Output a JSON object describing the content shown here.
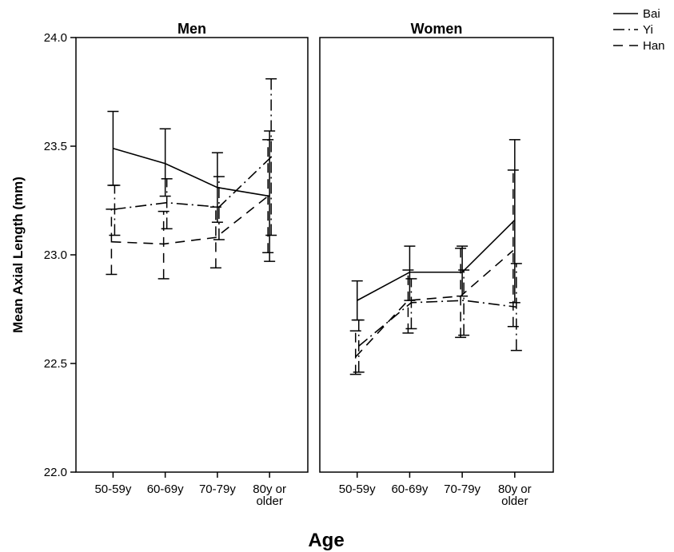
{
  "chart_data": {
    "type": "line",
    "panels": [
      {
        "title": "Men",
        "series": [
          {
            "name": "Bai",
            "values": [
              23.49,
              23.42,
              23.31,
              23.27
            ],
            "ci_low": [
              23.32,
              23.27,
              23.15,
              22.97
            ],
            "ci_high": [
              23.66,
              23.58,
              23.47,
              23.57
            ]
          },
          {
            "name": "Yi",
            "values": [
              23.21,
              23.24,
              23.22,
              23.45
            ],
            "ci_low": [
              23.09,
              23.12,
              23.07,
              23.09
            ],
            "ci_high": [
              23.32,
              23.35,
              23.36,
              23.81
            ]
          },
          {
            "name": "Han",
            "values": [
              23.06,
              23.05,
              23.08,
              23.27
            ],
            "ci_low": [
              22.91,
              22.89,
              22.94,
              23.01
            ],
            "ci_high": [
              23.21,
              23.2,
              23.22,
              23.53
            ]
          }
        ]
      },
      {
        "title": "Women",
        "series": [
          {
            "name": "Bai",
            "values": [
              22.79,
              22.92,
              22.92,
              23.16
            ],
            "ci_low": [
              22.7,
              22.79,
              22.81,
              22.78
            ],
            "ci_high": [
              22.88,
              23.04,
              23.04,
              23.53
            ]
          },
          {
            "name": "Yi",
            "values": [
              22.58,
              22.78,
              22.79,
              22.76
            ],
            "ci_low": [
              22.46,
              22.66,
              22.63,
              22.56
            ],
            "ci_high": [
              22.7,
              22.89,
              22.93,
              22.96
            ]
          },
          {
            "name": "Han",
            "values": [
              22.53,
              22.79,
              22.81,
              23.02
            ],
            "ci_low": [
              22.45,
              22.64,
              22.62,
              22.67
            ],
            "ci_high": [
              22.65,
              22.93,
              23.03,
              23.39
            ]
          }
        ]
      }
    ],
    "categories": [
      [
        "50-59y"
      ],
      [
        "60-69y"
      ],
      [
        "70-79y"
      ],
      [
        "80y or",
        "older"
      ]
    ],
    "xlabel": "Age",
    "ylabel": "Mean Axial Length (mm)",
    "ylim": [
      22.0,
      24.0
    ],
    "yticks": [
      "22.0",
      "22.5",
      "23.0",
      "23.5",
      "24.0"
    ],
    "legend": {
      "position": "top-right",
      "entries": [
        {
          "name": "Bai",
          "style": "solid"
        },
        {
          "name": "Yi",
          "style": "dash-dot"
        },
        {
          "name": "Han",
          "style": "dashed"
        }
      ]
    },
    "grid": false,
    "line_color": "#000000",
    "errorbars": "95% CI"
  }
}
